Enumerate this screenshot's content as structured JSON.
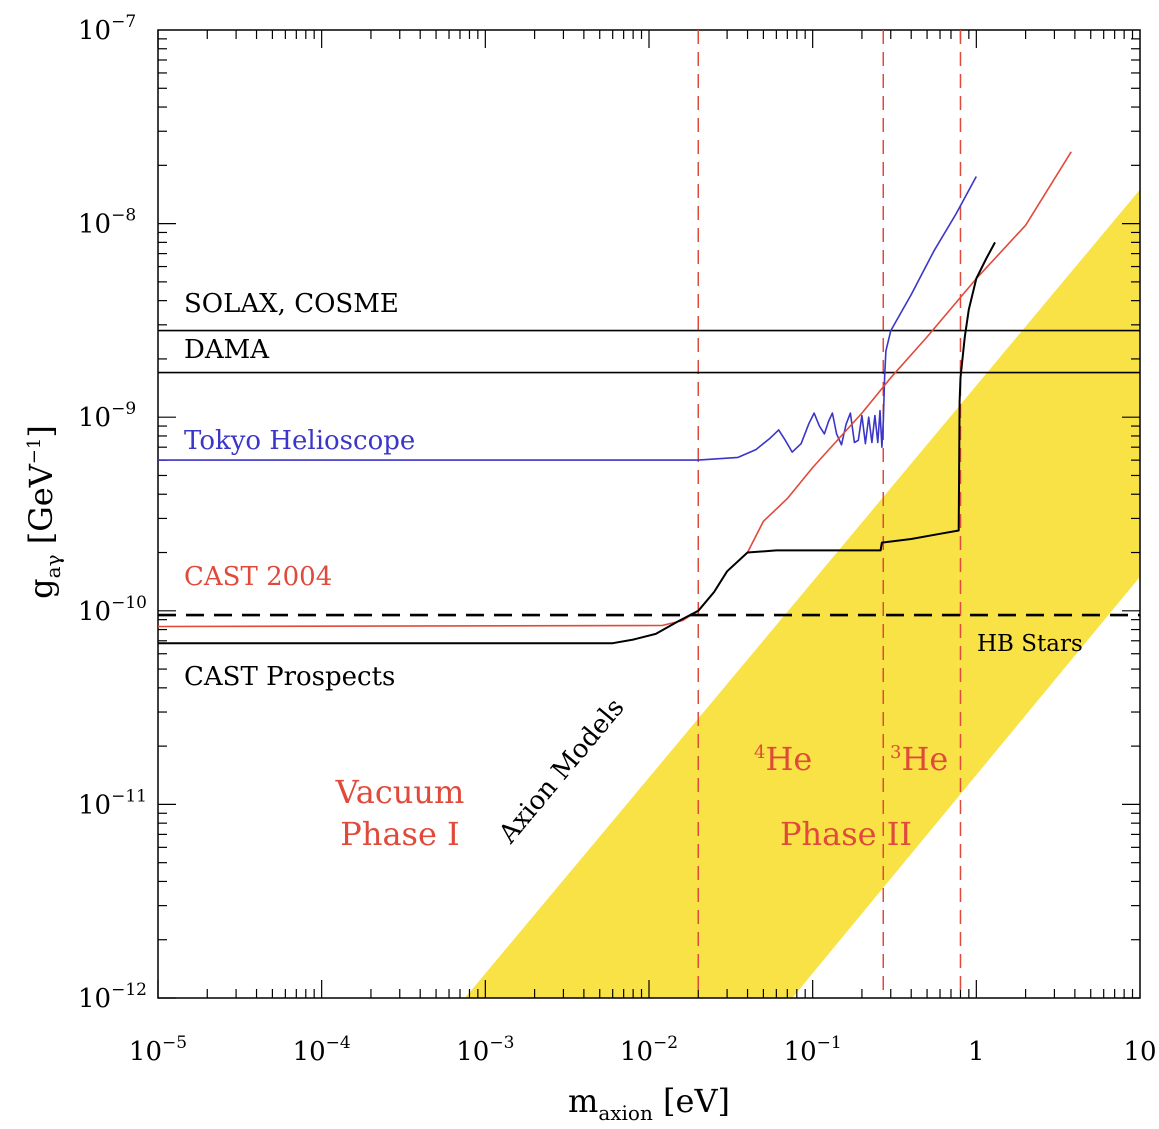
{
  "chart_data": {
    "type": "line",
    "x_scale": "log",
    "y_scale": "log",
    "xlim": [
      1e-05,
      10
    ],
    "ylim": [
      1e-12,
      1e-07
    ],
    "x_ticks": [
      {
        "value": 1e-05,
        "base": "10",
        "exp": "−5"
      },
      {
        "value": 0.0001,
        "base": "10",
        "exp": "−4"
      },
      {
        "value": 0.001,
        "base": "10",
        "exp": "−3"
      },
      {
        "value": 0.01,
        "base": "10",
        "exp": "−2"
      },
      {
        "value": 0.1,
        "base": "10",
        "exp": "−1"
      },
      {
        "value": 1,
        "base": "1",
        "exp": ""
      },
      {
        "value": 10,
        "base": "10",
        "exp": ""
      }
    ],
    "y_ticks": [
      {
        "value": 1e-12,
        "base": "10",
        "exp": "−12"
      },
      {
        "value": 1e-11,
        "base": "10",
        "exp": "−11"
      },
      {
        "value": 1e-10,
        "base": "10",
        "exp": "−10"
      },
      {
        "value": 1e-09,
        "base": "10",
        "exp": "−9"
      },
      {
        "value": 1e-08,
        "base": "10",
        "exp": "−8"
      },
      {
        "value": 1e-07,
        "base": "10",
        "exp": "−7"
      }
    ],
    "xlabel": {
      "main": "m",
      "sub": "axion",
      "unit": " [eV]"
    },
    "ylabel": {
      "main": "g",
      "sub": "aγ",
      "unit_a": " [GeV",
      "unit_exp": "−1",
      "unit_b": "]"
    },
    "axion_band": {
      "color": "#f9e246",
      "label": "Axion Models",
      "lower_edge": [
        [
          0.075,
          1e-12
        ],
        [
          10,
          1.5e-10
        ]
      ],
      "upper_edge": [
        [
          0.00075,
          1e-12
        ],
        [
          10,
          1.5e-08
        ]
      ]
    },
    "series": [
      {
        "name": "SOLAX, COSME",
        "color": "#000000",
        "points": [
          [
            1e-05,
            2.8e-09
          ],
          [
            10,
            2.8e-09
          ]
        ]
      },
      {
        "name": "DAMA",
        "color": "#000000",
        "points": [
          [
            1e-05,
            1.7e-09
          ],
          [
            10,
            1.7e-09
          ]
        ]
      },
      {
        "name": "Tokyo Helioscope",
        "color": "#3b35c8",
        "points": [
          [
            1e-05,
            6e-10
          ],
          [
            0.02,
            6e-10
          ],
          [
            0.035,
            6.2e-10
          ],
          [
            0.045,
            6.8e-10
          ],
          [
            0.055,
            7.8e-10
          ],
          [
            0.062,
            8.6e-10
          ],
          [
            0.068,
            7.6e-10
          ],
          [
            0.075,
            6.6e-10
          ],
          [
            0.085,
            7.3e-10
          ],
          [
            0.095,
            9.3e-10
          ],
          [
            0.102,
            1.05e-09
          ],
          [
            0.11,
            9e-10
          ],
          [
            0.118,
            8.2e-10
          ],
          [
            0.125,
            9.5e-10
          ],
          [
            0.132,
            1.05e-09
          ],
          [
            0.14,
            8.2e-10
          ],
          [
            0.15,
            7.2e-10
          ],
          [
            0.16,
            9.2e-10
          ],
          [
            0.17,
            1.05e-09
          ],
          [
            0.18,
            7.4e-10
          ],
          [
            0.19,
            7.6e-10
          ],
          [
            0.2,
            1.02e-09
          ],
          [
            0.21,
            7.3e-10
          ],
          [
            0.22,
            1e-09
          ],
          [
            0.23,
            7.4e-10
          ],
          [
            0.24,
            1.02e-09
          ],
          [
            0.25,
            7.4e-10
          ],
          [
            0.258,
            1.08e-09
          ],
          [
            0.265,
            7e-10
          ],
          [
            0.27,
            9.5e-10
          ],
          [
            0.275,
            1.6e-09
          ],
          [
            0.28,
            2.2e-09
          ],
          [
            0.3,
            2.8e-09
          ],
          [
            0.4,
            4.3e-09
          ],
          [
            0.55,
            7.2e-09
          ],
          [
            0.75,
            1.12e-08
          ],
          [
            1.0,
            1.75e-08
          ]
        ]
      },
      {
        "name": "CAST 2004",
        "color": "#e04a3a",
        "points": [
          [
            1e-05,
            8.3e-11
          ],
          [
            0.012,
            8.4e-11
          ],
          [
            0.016,
            8.9e-11
          ],
          [
            0.02,
            1e-10
          ],
          [
            0.025,
            1.25e-10
          ],
          [
            0.03,
            1.6e-10
          ],
          [
            0.04,
            2e-10
          ],
          [
            0.05,
            2.9e-10
          ],
          [
            0.07,
            3.8e-10
          ],
          [
            0.1,
            5.5e-10
          ],
          [
            0.2,
            1.05e-09
          ],
          [
            0.3,
            1.6e-09
          ],
          [
            0.5,
            2.6e-09
          ],
          [
            1.0,
            5.2e-09
          ],
          [
            2.0,
            9.8e-09
          ],
          [
            3.8,
            2.35e-08
          ]
        ]
      },
      {
        "name": "CAST Prospects",
        "color": "#000000",
        "points": [
          [
            1e-05,
            6.8e-11
          ],
          [
            0.006,
            6.8e-11
          ],
          [
            0.008,
            7.1e-11
          ],
          [
            0.011,
            7.6e-11
          ],
          [
            0.015,
            8.8e-11
          ],
          [
            0.02,
            1e-10
          ],
          [
            0.025,
            1.25e-10
          ],
          [
            0.03,
            1.6e-10
          ],
          [
            0.04,
            2e-10
          ],
          [
            0.06,
            2.05e-10
          ],
          [
            0.1,
            2.05e-10
          ],
          [
            0.15,
            2.05e-10
          ],
          [
            0.26,
            2.05e-10
          ],
          [
            0.265,
            2.25e-10
          ],
          [
            0.4,
            2.35e-10
          ],
          [
            0.6,
            2.5e-10
          ],
          [
            0.78,
            2.6e-10
          ],
          [
            0.79,
            1.2e-09
          ],
          [
            0.8,
            1.6e-09
          ],
          [
            0.85,
            2.6e-09
          ],
          [
            0.9,
            3.6e-09
          ],
          [
            1.0,
            5.2e-09
          ],
          [
            1.15,
            6.6e-09
          ],
          [
            1.3,
            8e-09
          ]
        ]
      },
      {
        "name": "HB Stars",
        "color": "#000000",
        "dashed": true,
        "points": [
          [
            1e-05,
            9.5e-11
          ],
          [
            10,
            9.5e-11
          ]
        ]
      }
    ],
    "phase_boundaries": [
      0.02,
      0.27,
      0.8
    ],
    "region_labels": {
      "vacuum_line1": "Vacuum",
      "vacuum_line2": "Phase I",
      "he4_sup": "4",
      "he4": "He",
      "he3_sup": "3",
      "he3": "He",
      "phase2": "Phase II"
    }
  }
}
